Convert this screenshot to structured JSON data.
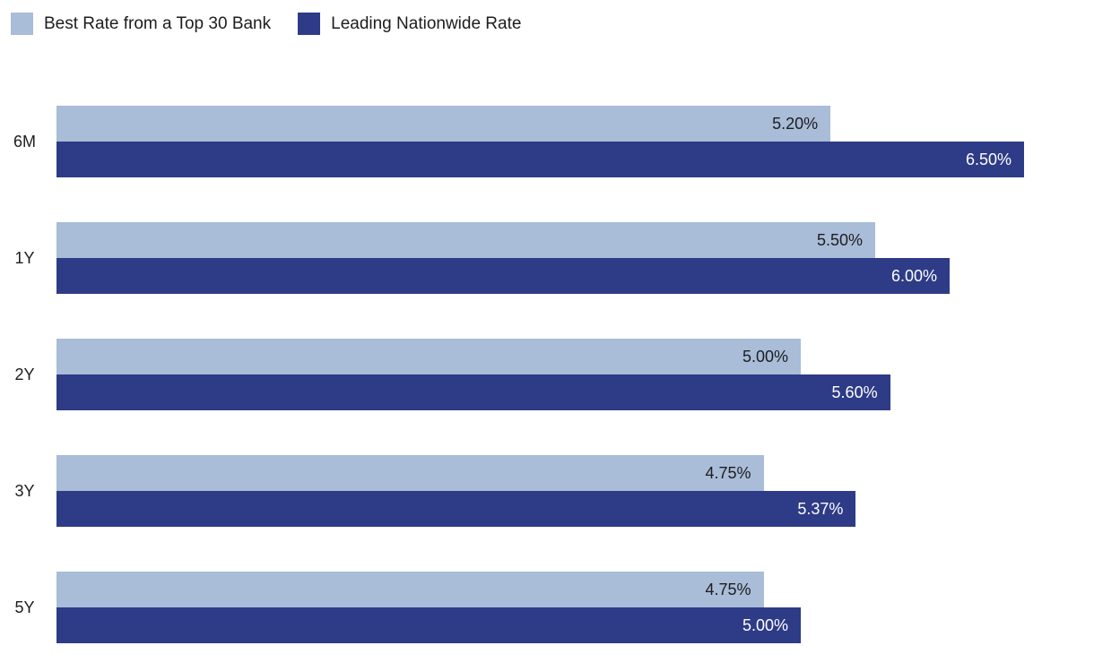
{
  "chart_data": {
    "type": "bar",
    "orientation": "horizontal",
    "title": "",
    "xlabel": "",
    "ylabel": "",
    "grid": false,
    "legend_position": "top-left",
    "xlim": [
      0,
      6.5
    ],
    "categories": [
      "6M",
      "1Y",
      "2Y",
      "3Y",
      "5Y"
    ],
    "series": [
      {
        "name": "Best Rate from a Top 30 Bank",
        "color": "#a9bcd8",
        "label_color": "#1d1d1f",
        "values": [
          5.2,
          5.5,
          5.0,
          4.75,
          4.75
        ],
        "labels": [
          "5.20%",
          "5.50%",
          "5.00%",
          "4.75%",
          "4.75%"
        ]
      },
      {
        "name": "Leading Nationwide Rate",
        "color": "#2e3b87",
        "label_color": "#ffffff",
        "values": [
          6.5,
          6.0,
          5.6,
          5.37,
          5.0
        ],
        "labels": [
          "6.50%",
          "6.00%",
          "5.60%",
          "5.37%",
          "5.00%"
        ]
      }
    ]
  }
}
